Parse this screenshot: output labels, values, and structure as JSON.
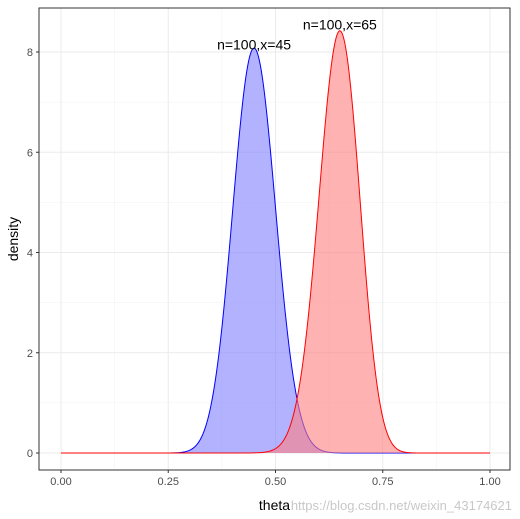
{
  "chart_data": {
    "type": "area",
    "title": "",
    "xlabel": "theta",
    "ylabel": "density",
    "xlim": [
      0,
      1
    ],
    "ylim": [
      -0.1,
      8.5
    ],
    "xticks": [
      0.0,
      0.25,
      0.5,
      0.75,
      1.0
    ],
    "xtick_labels": [
      "0.00",
      "0.25",
      "0.50",
      "0.75",
      "1.00"
    ],
    "yticks": [
      0,
      2,
      4,
      6,
      8
    ],
    "ytick_labels": [
      "0",
      "2",
      "4",
      "6",
      "8"
    ],
    "grid": true,
    "legend": "none",
    "series": [
      {
        "n": 100,
        "x": 45,
        "line_color": "#0000ff",
        "fill_color": "#7f7fff",
        "fill_opacity": 0.6
      },
      {
        "n": 100,
        "x": 65,
        "line_color": "#ff0000",
        "fill_color": "#ff7f7f",
        "fill_opacity": 0.6
      }
    ],
    "annotations": [
      {
        "text": "n=100,x=45",
        "x": 0.45,
        "y": 8.05
      },
      {
        "text": "n=100,x=65",
        "x": 0.65,
        "y": 8.45
      }
    ]
  },
  "watermark": "https://blog.csdn.net/weixin_43174621"
}
